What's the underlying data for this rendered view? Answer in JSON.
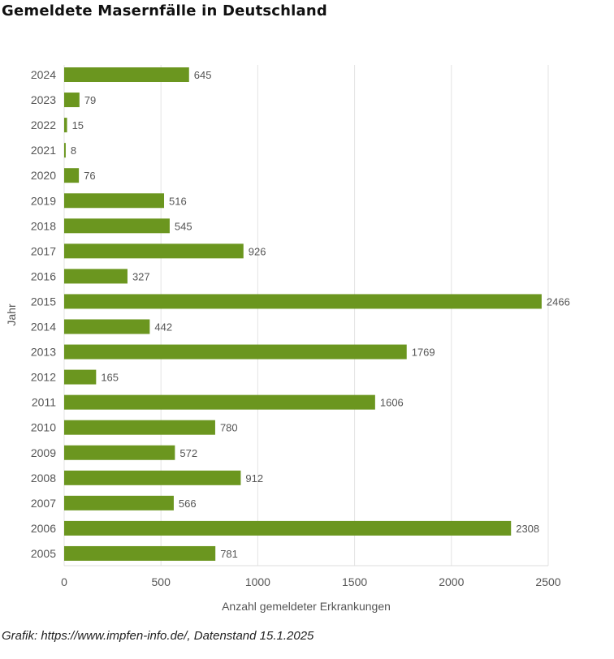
{
  "title": "Gemeldete Masernfälle in Deutschland",
  "footer": "Grafik: https://www.impfen-info.de/, Datenstand 15.1.2025",
  "chart_data": {
    "type": "bar",
    "orientation": "horizontal",
    "title": "Gemeldete Masernfälle in Deutschland",
    "xlabel": "Anzahl gemeldeter Erkrankungen",
    "ylabel": "Jahr",
    "xlim": [
      0,
      2500
    ],
    "xticks": [
      "0",
      "500",
      "1000",
      "1500",
      "2000",
      "2500"
    ],
    "grid": true,
    "bar_color": "#6b961f",
    "categories": [
      "2024",
      "2023",
      "2022",
      "2021",
      "2020",
      "2019",
      "2018",
      "2017",
      "2016",
      "2015",
      "2014",
      "2013",
      "2012",
      "2011",
      "2010",
      "2009",
      "2008",
      "2007",
      "2006",
      "2005"
    ],
    "values": [
      645,
      79,
      15,
      8,
      76,
      516,
      545,
      926,
      327,
      2466,
      442,
      1769,
      165,
      1606,
      780,
      572,
      912,
      566,
      2308,
      781
    ]
  }
}
